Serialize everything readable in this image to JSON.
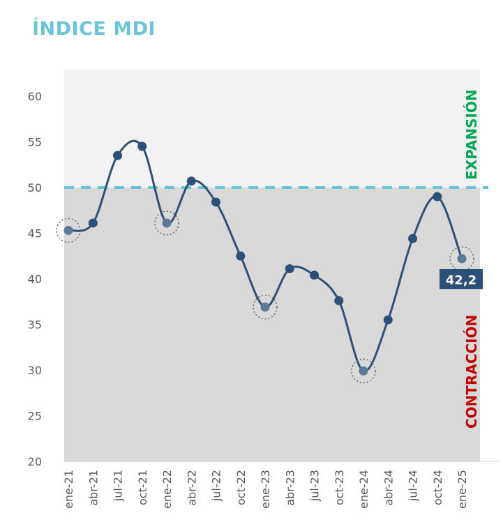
{
  "chart_data": {
    "type": "line",
    "title": "ÍNDICE MDI",
    "categories": [
      "ene-21",
      "abr-21",
      "jul-21",
      "oct-21",
      "ene-22",
      "abr-22",
      "jul-22",
      "oct-22",
      "ene-23",
      "abr-23",
      "jul-23",
      "oct-23",
      "ene-24",
      "abr-24",
      "jul-24",
      "oct-24",
      "ene-25"
    ],
    "values": [
      45.3,
      46.1,
      53.5,
      54.5,
      46.1,
      50.7,
      48.4,
      42.5,
      36.9,
      41.1,
      40.4,
      37.6,
      29.9,
      35.5,
      44.4,
      49.0,
      42.2
    ],
    "highlighted": [
      "ene-21",
      "ene-22",
      "ene-23",
      "ene-24",
      "ene-25"
    ],
    "ylim": [
      20,
      60
    ],
    "yticks": [
      20,
      25,
      30,
      35,
      40,
      45,
      50,
      55,
      60
    ],
    "threshold": 50,
    "upper_label": "EXPANSIÓN",
    "lower_label": "CONTRACCIÓN",
    "last_value_label": "42,2",
    "colors": {
      "line": "#2c5078",
      "highlight": "#5b7896",
      "threshold": "#6cc5d6",
      "upper_bg": "#f2f2f2",
      "lower_bg": "#d9d9d9",
      "expansion": "#00a651",
      "contraction": "#c00000",
      "title": "#6cc5d6"
    }
  }
}
